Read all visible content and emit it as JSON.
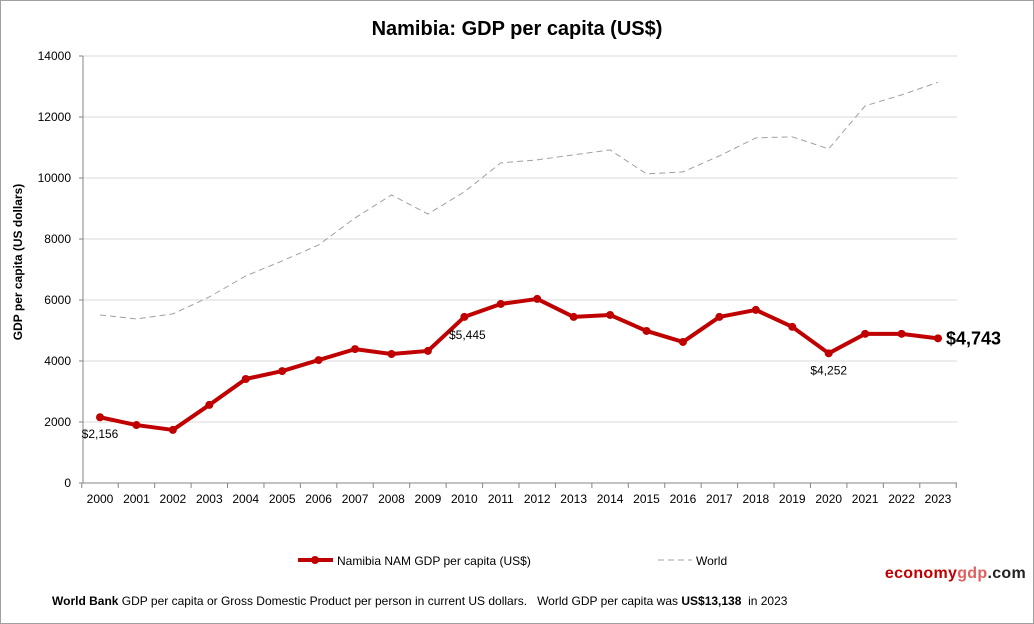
{
  "chart_data": {
    "type": "line",
    "title": "Namibia: GDP per capita (US$)",
    "xlabel": "",
    "ylabel": "GDP per capita (US dollars)",
    "ylim": [
      0,
      14000
    ],
    "yticks": [
      "0",
      "2000",
      "4000",
      "6000",
      "8000",
      "10000",
      "12000",
      "14000"
    ],
    "grid": true,
    "legend_position": "bottom",
    "categories": [
      "2000",
      "2001",
      "2002",
      "2003",
      "2004",
      "2005",
      "2006",
      "2007",
      "2008",
      "2009",
      "2010",
      "2011",
      "2012",
      "2013",
      "2014",
      "2015",
      "2016",
      "2017",
      "2018",
      "2019",
      "2020",
      "2021",
      "2022",
      "2023"
    ],
    "series": [
      {
        "name": "Namibia NAM GDP per capita (US$)",
        "color": "#c00000",
        "style": "solid-markers",
        "values": [
          2156,
          1900,
          1740,
          2560,
          3410,
          3670,
          4030,
          4390,
          4230,
          4330,
          5445,
          5870,
          6035,
          5445,
          5510,
          4985,
          4625,
          5445,
          5675,
          5120,
          4252,
          4890,
          4890,
          4743
        ]
      },
      {
        "name": "World",
        "color": "#a0a0a0",
        "style": "dashed",
        "values": [
          5510,
          5380,
          5545,
          6100,
          6790,
          7280,
          7805,
          8690,
          9445,
          8820,
          9545,
          10495,
          10595,
          10760,
          10920,
          10135,
          10200,
          10725,
          11315,
          11350,
          10955,
          12365,
          12725,
          13138
        ]
      }
    ],
    "annotations": [
      {
        "series": 0,
        "index": 0,
        "text": "$2,156"
      },
      {
        "series": 0,
        "index": 10,
        "text": "$5,445"
      },
      {
        "series": 0,
        "index": 20,
        "text": "$4,252"
      },
      {
        "series": 0,
        "index": 23,
        "text": "$4,743"
      }
    ]
  },
  "footer": {
    "source_bold": "World Bank",
    "text": " GDP per capita or Gross Domestic Product per person in current US dollars.   World GDP per capita was ",
    "value_bold": "US$13,138",
    "suffix": "  in 2023"
  },
  "logo": {
    "part1": "economy",
    "part2": "gdp",
    "part3": ".com",
    "color1": "#c00000",
    "color2": "#e06060",
    "color3": "#222222"
  }
}
